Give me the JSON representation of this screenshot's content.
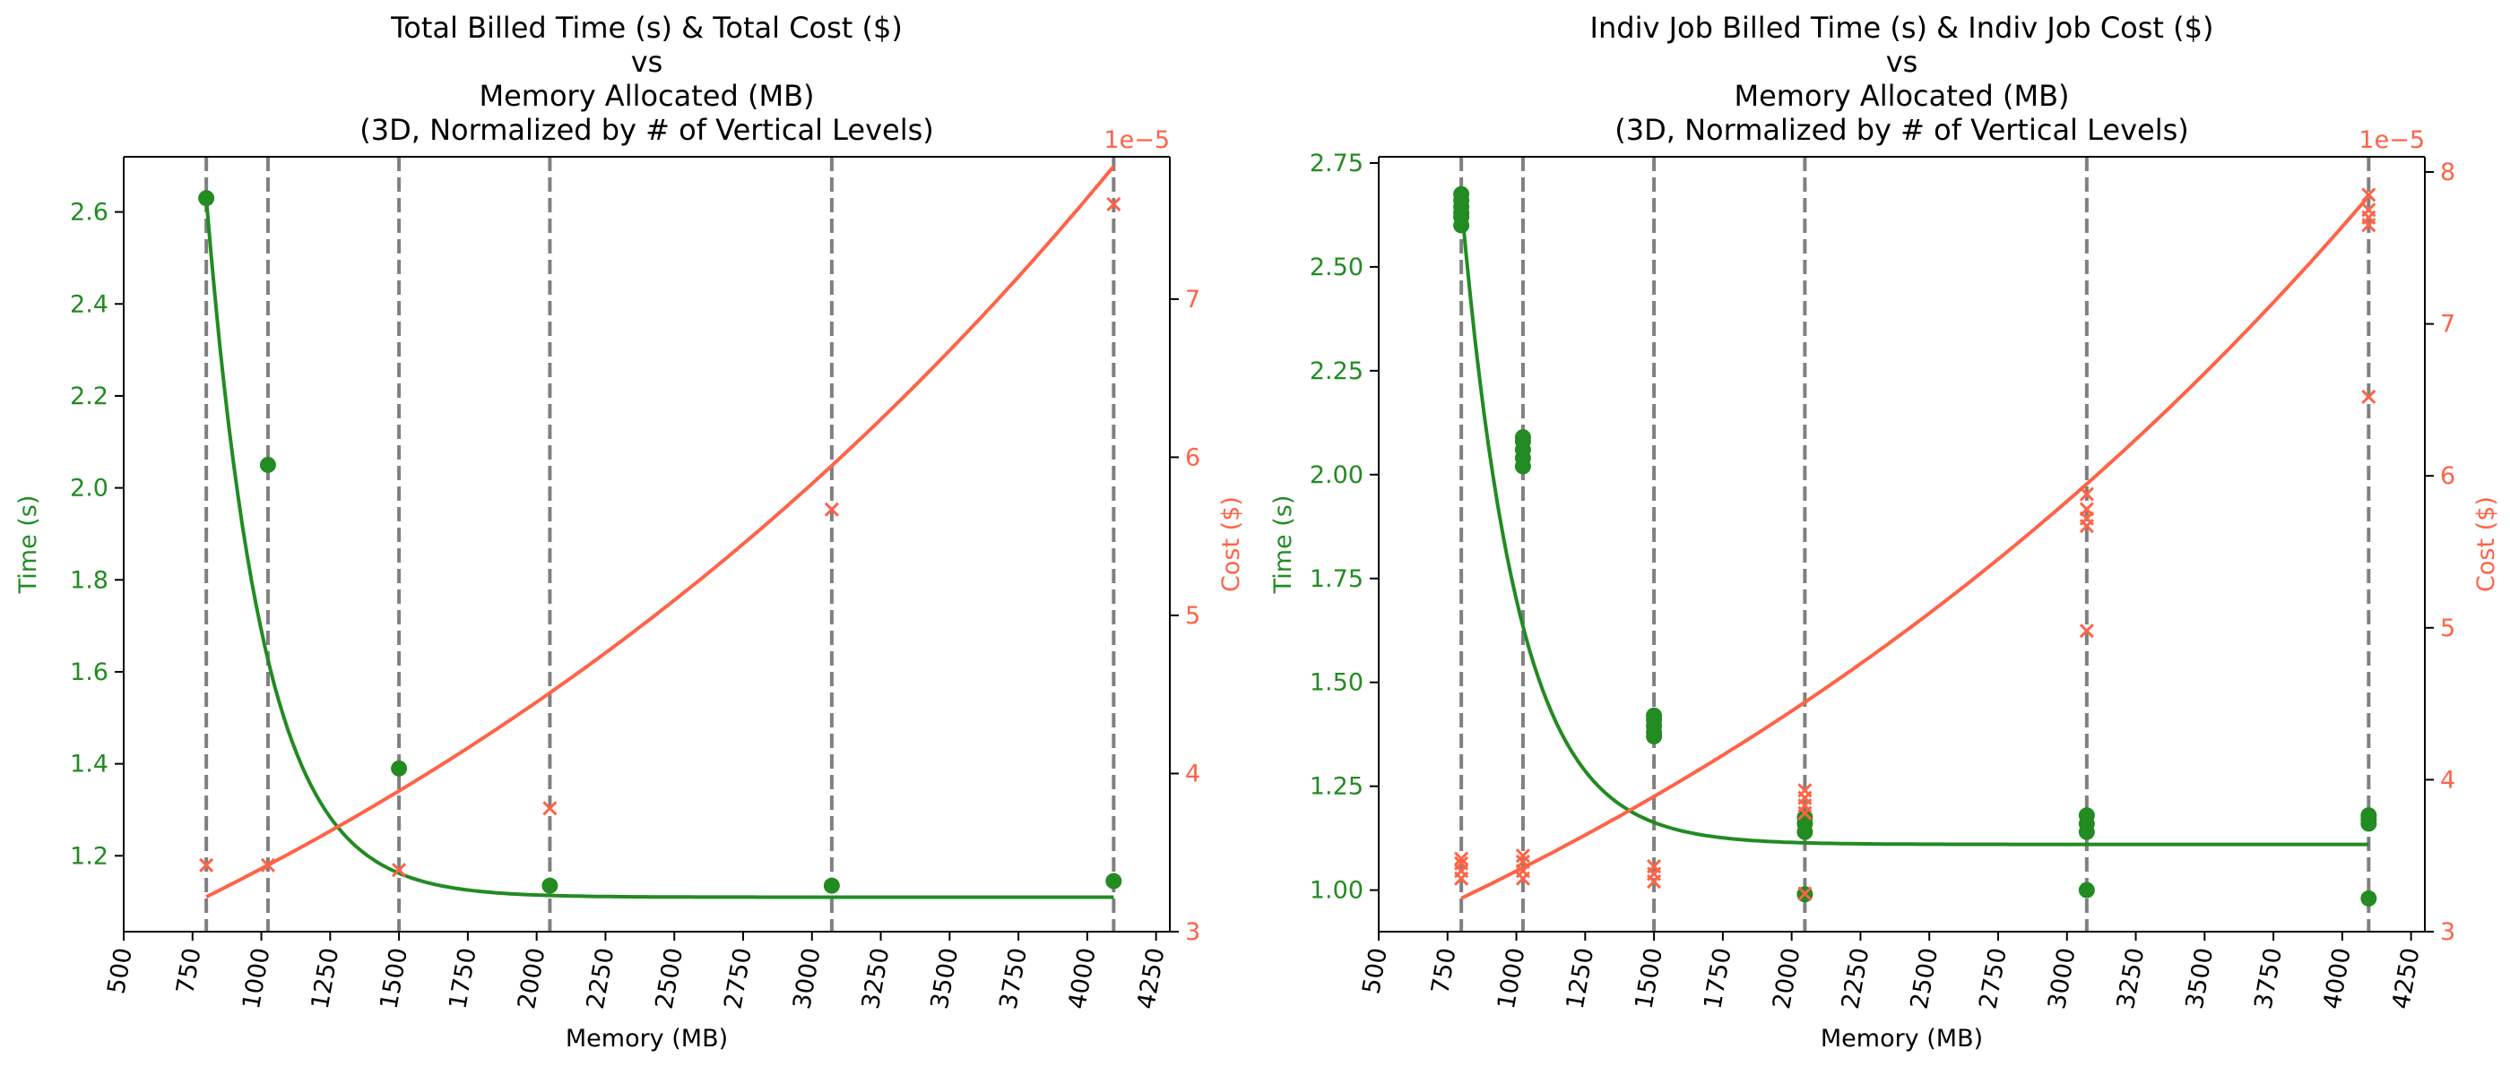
{
  "colors": {
    "time": "#228b22",
    "cost": "#ff6347",
    "vline": "#808080",
    "axis": "#000000"
  },
  "vlines_mb": [
    800,
    1024,
    1500,
    2048,
    3072,
    4096
  ],
  "chart_data": [
    {
      "type": "scatter",
      "title_lines": [
        "Total Billed Time (s) & Total Cost ($)",
        "vs",
        "Memory Allocated (MB)",
        "(3D, Normalized by # of Vertical Levels)"
      ],
      "xlabel": "Memory (MB)",
      "ylabel_left": "Time (s)",
      "ylabel_right": "Cost ($)",
      "right_offset_label": "1e−5",
      "xlim": [
        500,
        4300
      ],
      "xticks": [
        500,
        750,
        1000,
        1250,
        1500,
        1750,
        2000,
        2250,
        2500,
        2750,
        3000,
        3250,
        3500,
        3750,
        4000,
        4250
      ],
      "ylim_left": [
        1.035,
        2.72
      ],
      "yticks_left": [
        1.2,
        1.4,
        1.6,
        1.8,
        2.0,
        2.2,
        2.4,
        2.6
      ],
      "ytick_labels_left": [
        "1.2",
        "1.4",
        "1.6",
        "1.8",
        "2.0",
        "2.2",
        "2.4",
        "2.6"
      ],
      "ylim_right": [
        3.0,
        7.9
      ],
      "yticks_right": [
        3,
        4,
        5,
        6,
        7
      ],
      "series": [
        {
          "name": "Time (s)",
          "axis": "left",
          "marker": "circle",
          "points": [
            [
              800,
              2.63
            ],
            [
              1024,
              2.05
            ],
            [
              1500,
              1.39
            ],
            [
              2048,
              1.135
            ],
            [
              3072,
              1.135
            ],
            [
              4096,
              1.145
            ]
          ]
        },
        {
          "name": "Cost ($)",
          "axis": "right",
          "marker": "x",
          "points": [
            [
              800,
              3.42
            ],
            [
              1024,
              3.42
            ],
            [
              1500,
              3.39
            ],
            [
              2048,
              3.78
            ],
            [
              3072,
              5.67
            ],
            [
              4096,
              7.6
            ]
          ]
        }
      ],
      "fit_time": {
        "a": 1.52,
        "b": 0.00482,
        "c": 1.11,
        "x0": 800,
        "x_range": [
          800,
          4096
        ]
      },
      "fit_cost": {
        "a": 3.22,
        "b": 0.00027,
        "x0": 800,
        "x_range": [
          800,
          4096
        ]
      }
    },
    {
      "type": "scatter",
      "title_lines": [
        "Indiv Job Billed Time (s) & Indiv Job Cost ($)",
        "vs",
        "Memory Allocated (MB)",
        "(3D, Normalized by # of Vertical Levels)"
      ],
      "xlabel": "Memory (MB)",
      "ylabel_left": "Time (s)",
      "ylabel_right": "Cost ($)",
      "right_offset_label": "1e−5",
      "xlim": [
        500,
        4300
      ],
      "xticks": [
        500,
        750,
        1000,
        1250,
        1500,
        1750,
        2000,
        2250,
        2500,
        2750,
        3000,
        3250,
        3500,
        3750,
        4000,
        4250
      ],
      "ylim_left": [
        0.9,
        2.765
      ],
      "yticks_left": [
        1.0,
        1.25,
        1.5,
        1.75,
        2.0,
        2.25,
        2.5,
        2.75
      ],
      "ytick_labels_left": [
        "1.00",
        "1.25",
        "1.50",
        "1.75",
        "2.00",
        "2.25",
        "2.50",
        "2.75"
      ],
      "ylim_right": [
        3.0,
        8.1
      ],
      "yticks_right": [
        3,
        4,
        5,
        6,
        7,
        8
      ],
      "series": [
        {
          "name": "Time (s)",
          "axis": "left",
          "marker": "circle",
          "points": [
            [
              800,
              2.6
            ],
            [
              800,
              2.62
            ],
            [
              800,
              2.63
            ],
            [
              800,
              2.645
            ],
            [
              800,
              2.66
            ],
            [
              800,
              2.675
            ],
            [
              1024,
              2.02
            ],
            [
              1024,
              2.04
            ],
            [
              1024,
              2.06
            ],
            [
              1024,
              2.08
            ],
            [
              1024,
              2.09
            ],
            [
              1500,
              1.37
            ],
            [
              1500,
              1.38
            ],
            [
              1500,
              1.395
            ],
            [
              1500,
              1.41
            ],
            [
              1500,
              1.42
            ],
            [
              2048,
              0.99
            ],
            [
              2048,
              1.14
            ],
            [
              2048,
              1.16
            ],
            [
              2048,
              1.175
            ],
            [
              3072,
              1.0
            ],
            [
              3072,
              1.14
            ],
            [
              3072,
              1.16
            ],
            [
              3072,
              1.18
            ],
            [
              4096,
              0.98
            ],
            [
              4096,
              1.16
            ],
            [
              4096,
              1.17
            ],
            [
              4096,
              1.18
            ]
          ]
        },
        {
          "name": "Cost ($)",
          "axis": "right",
          "marker": "x",
          "points": [
            [
              800,
              3.35
            ],
            [
              800,
              3.4
            ],
            [
              800,
              3.45
            ],
            [
              800,
              3.48
            ],
            [
              1024,
              3.35
            ],
            [
              1024,
              3.4
            ],
            [
              1024,
              3.46
            ],
            [
              1024,
              3.5
            ],
            [
              1500,
              3.33
            ],
            [
              1500,
              3.38
            ],
            [
              1500,
              3.43
            ],
            [
              2048,
              3.25
            ],
            [
              2048,
              3.78
            ],
            [
              2048,
              3.83
            ],
            [
              2048,
              3.88
            ],
            [
              2048,
              3.93
            ],
            [
              3072,
              4.98
            ],
            [
              3072,
              5.67
            ],
            [
              3072,
              5.72
            ],
            [
              3072,
              5.78
            ],
            [
              3072,
              5.88
            ],
            [
              4096,
              6.52
            ],
            [
              4096,
              7.65
            ],
            [
              4096,
              7.7
            ],
            [
              4096,
              7.75
            ],
            [
              4096,
              7.85
            ]
          ]
        }
      ],
      "fit_time": {
        "a": 1.545,
        "b": 0.00482,
        "c": 1.11,
        "x0": 800,
        "x_range": [
          800,
          4096
        ]
      },
      "fit_cost": {
        "a": 3.22,
        "b": 0.00027,
        "x0": 800,
        "x_range": [
          800,
          4096
        ]
      }
    }
  ]
}
